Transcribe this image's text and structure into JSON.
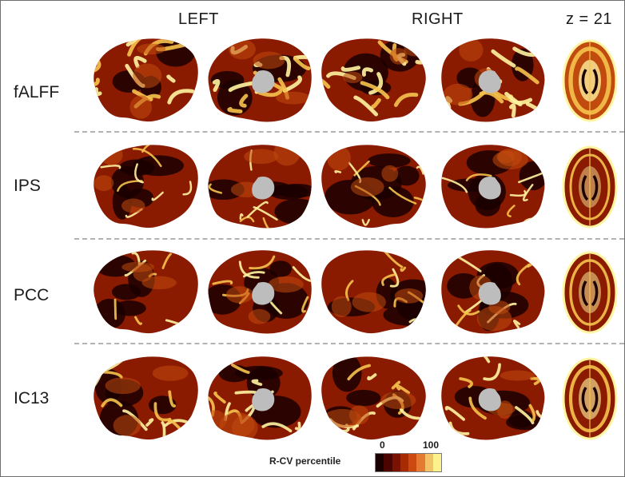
{
  "headers": {
    "left": "LEFT",
    "right": "RIGHT",
    "slice": "z = 21"
  },
  "rows": [
    {
      "label": "fALFF",
      "level": 0.85
    },
    {
      "label": "IPS",
      "level": 0.25
    },
    {
      "label": "PCC",
      "level": 0.35
    },
    {
      "label": "IC13",
      "level": 0.55
    }
  ],
  "colorbar": {
    "title": "R-CV percentile",
    "min": "0",
    "max": "100",
    "colors": [
      "#1a0000",
      "#4a0500",
      "#7a1200",
      "#a82a00",
      "#cc4a12",
      "#e47a32",
      "#f3c266",
      "#fbf28e"
    ]
  },
  "colors": {
    "dark": "#1a0000",
    "base": "#8a1a00",
    "mid": "#c14a0e",
    "bright": "#f6c34c",
    "pale": "#fff4a0",
    "ventricle_gray": "#bdbdbd"
  }
}
